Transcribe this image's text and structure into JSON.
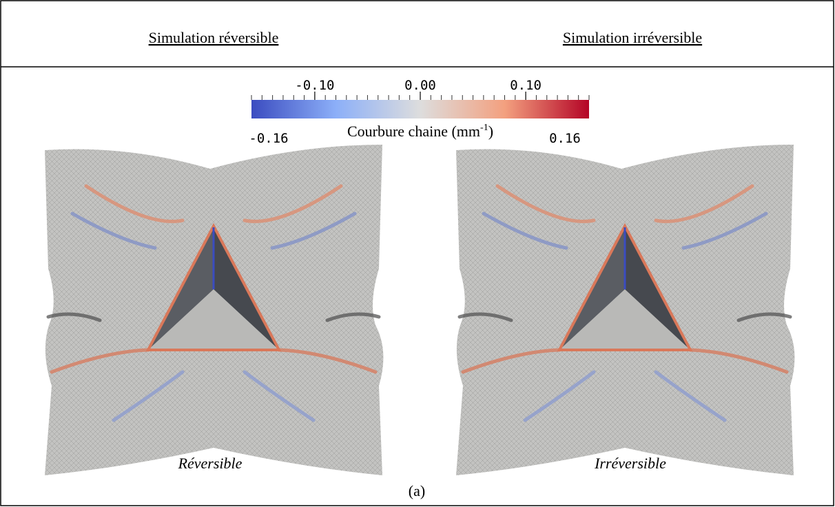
{
  "header": {
    "left": "Simulation réversible",
    "right": "Simulation irréversible"
  },
  "colorbar": {
    "range": [
      -0.16,
      0.16
    ],
    "ticks": [
      {
        "value": -0.1,
        "label": "-0.10"
      },
      {
        "value": 0,
        "label": "0.00"
      },
      {
        "value": 0.1,
        "label": "0.10"
      }
    ],
    "label": "Courbure chaine (mm",
    "label_exponent": "-1",
    "label_end": ")"
  },
  "panels": [
    {
      "label": "Réversible"
    },
    {
      "label": "Irréversible"
    }
  ],
  "caption": "(a)"
}
